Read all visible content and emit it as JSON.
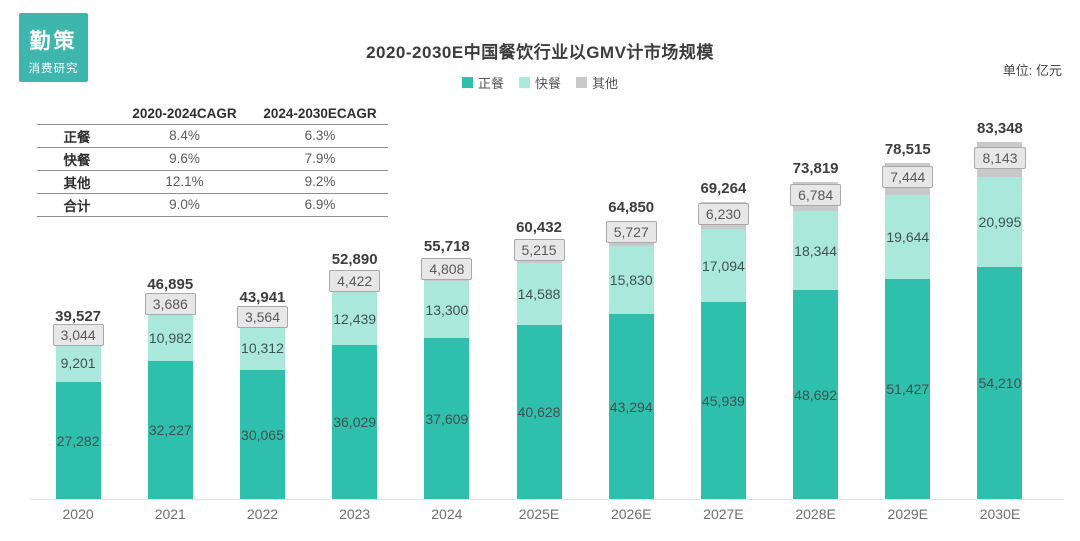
{
  "brand": {
    "line1": "勤策",
    "line2": "消费研究"
  },
  "header": {
    "title": "2020-2030E中国餐饮行业以GMV计市场规模",
    "unit_label": "单位: 亿元"
  },
  "legend": [
    {
      "label": "正餐",
      "color": "#2fbfad"
    },
    {
      "label": "快餐",
      "color": "#abe8dc"
    },
    {
      "label": "其他",
      "color": "#c9c9c9"
    }
  ],
  "cagr_table": {
    "headers": [
      "",
      "2020-2024CAGR",
      "2024-2030ECAGR"
    ],
    "rows": [
      {
        "label": "正餐",
        "cagr_2020_2024": "8.4%",
        "cagr_2024_2030": "6.3%"
      },
      {
        "label": "快餐",
        "cagr_2020_2024": "9.6%",
        "cagr_2024_2030": "7.9%"
      },
      {
        "label": "其他",
        "cagr_2020_2024": "12.1%",
        "cagr_2024_2030": "9.2%"
      },
      {
        "label": "合计",
        "cagr_2020_2024": "9.0%",
        "cagr_2024_2030": "6.9%"
      }
    ]
  },
  "chart_data": {
    "type": "bar",
    "stacked": true,
    "title": "2020-2030E中国餐饮行业以GMV计市场规模",
    "unit": "亿元",
    "legend_position": "top",
    "grid": false,
    "categories": [
      "2020",
      "2021",
      "2022",
      "2023",
      "2024",
      "2025E",
      "2026E",
      "2027E",
      "2028E",
      "2029E",
      "2030E"
    ],
    "series": [
      {
        "name": "正餐",
        "key": "main-dining",
        "color": "#2fbfad",
        "values": [
          27282,
          32227,
          30065,
          36029,
          37609,
          40628,
          43294,
          45939,
          48692,
          51427,
          54210
        ]
      },
      {
        "name": "快餐",
        "key": "fast-food",
        "color": "#abe8dc",
        "values": [
          9201,
          10982,
          10312,
          12439,
          13300,
          14588,
          15830,
          17094,
          18344,
          19644,
          20995
        ]
      },
      {
        "name": "其他",
        "key": "other",
        "color": "#c9c9c9",
        "values": [
          3044,
          3686,
          3564,
          4422,
          4808,
          5215,
          5727,
          6230,
          6784,
          7444,
          8143
        ]
      }
    ],
    "totals": [
      39527,
      46895,
      43941,
      52890,
      55718,
      60432,
      64850,
      69264,
      73819,
      78515,
      83348
    ],
    "ylim": [
      0,
      83348
    ]
  }
}
